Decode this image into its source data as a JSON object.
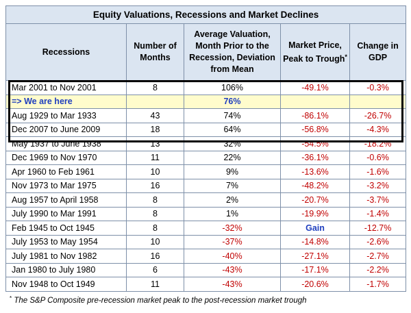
{
  "title": "Equity Valuations, Recessions and Market Declines",
  "headers": {
    "recessions": "Recessions",
    "months_l1": "Number of",
    "months_l2": "Months",
    "val_l1": "Average Valuation,",
    "val_l2": "Month Prior to the",
    "val_l3": "Recession, Deviation",
    "val_l4": "from Mean",
    "price_l1": "Market Price,",
    "price_l2": "Peak to Trough",
    "price_mark": "*",
    "gdp_l1": "Change in",
    "gdp_l2": "GDP"
  },
  "rows": [
    {
      "recession": "Mar 2001 to Nov 2001",
      "months": "8",
      "valuation": "106%",
      "price": "-49.1%",
      "gdp": "-0.3%"
    },
    {
      "recession": "=> We are here",
      "months": "",
      "valuation": "76%",
      "price": "",
      "gdp": ""
    },
    {
      "recession": "Aug 1929 to Mar 1933",
      "months": "43",
      "valuation": "74%",
      "price": "-86.1%",
      "gdp": "-26.7%"
    },
    {
      "recession": "Dec 2007 to June 2009",
      "months": "18",
      "valuation": "64%",
      "price": "-56.8%",
      "gdp": "-4.3%"
    },
    {
      "recession": "May 1937 to June 1938",
      "months": "13",
      "valuation": "32%",
      "price": "-54.5%",
      "gdp": "-18.2%"
    },
    {
      "recession": "Dec 1969 to Nov 1970",
      "months": "11",
      "valuation": "22%",
      "price": "-36.1%",
      "gdp": "-0.6%"
    },
    {
      "recession": "Apr 1960 to Feb 1961",
      "months": "10",
      "valuation": "9%",
      "price": "-13.6%",
      "gdp": "-1.6%"
    },
    {
      "recession": "Nov 1973 to Mar 1975",
      "months": "16",
      "valuation": "7%",
      "price": "-48.2%",
      "gdp": "-3.2%"
    },
    {
      "recession": "Aug 1957 to April 1958",
      "months": "8",
      "valuation": "2%",
      "price": "-20.7%",
      "gdp": "-3.7%"
    },
    {
      "recession": "July 1990 to Mar 1991",
      "months": "8",
      "valuation": "1%",
      "price": "-19.9%",
      "gdp": "-1.4%"
    },
    {
      "recession": "Feb 1945 to Oct 1945",
      "months": "8",
      "valuation": "-32%",
      "price": "Gain",
      "gdp": "-12.7%"
    },
    {
      "recession": "July 1953 to May 1954",
      "months": "10",
      "valuation": "-37%",
      "price": "-14.8%",
      "gdp": "-2.6%"
    },
    {
      "recession": "July 1981 to Nov 1982",
      "months": "16",
      "valuation": "-40%",
      "price": "-27.1%",
      "gdp": "-2.7%"
    },
    {
      "recession": "Jan 1980 to July 1980",
      "months": "6",
      "valuation": "-43%",
      "price": "-17.1%",
      "gdp": "-2.2%"
    },
    {
      "recession": "Nov 1948 to Oct 1949",
      "months": "11",
      "valuation": "-43%",
      "price": "-20.6%",
      "gdp": "-1.7%"
    }
  ],
  "footnote_mark": "*",
  "footnote": "The S&P Composite pre-recession market peak to the post-recession market trough",
  "colors": {
    "header_bg": "#dbe5f1",
    "border": "#7d8fa8",
    "negative": "#c00000",
    "highlight_text": "#1f3fbf",
    "highlight_bg": "#fffccc"
  }
}
